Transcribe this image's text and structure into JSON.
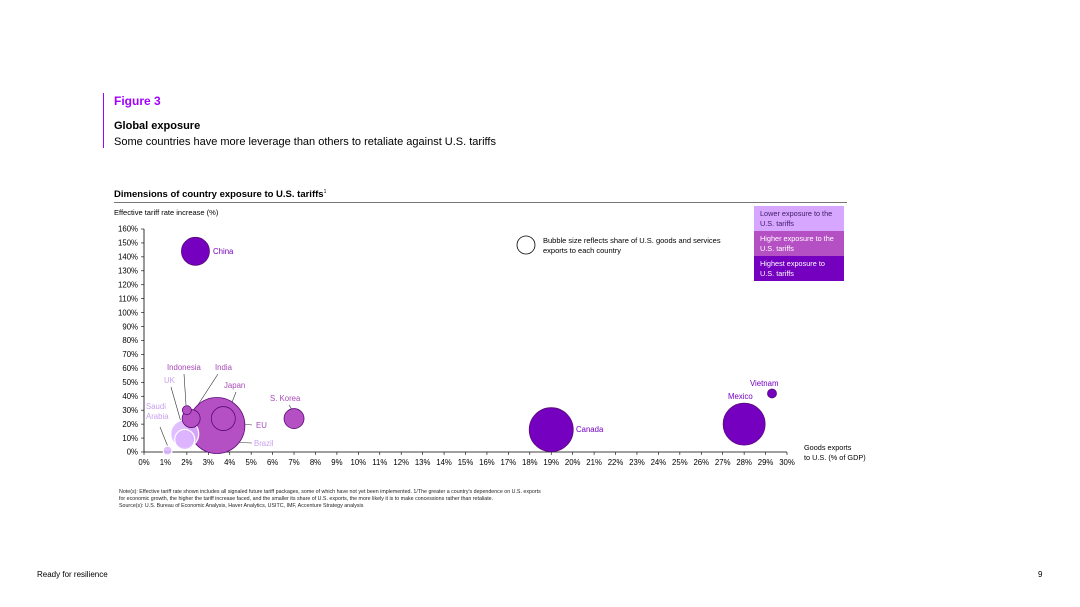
{
  "figure": {
    "label": "Figure 3",
    "title": "Global exposure",
    "subtitle": "Some countries have more leverage than others to retaliate against U.S. tariffs"
  },
  "footer": {
    "text": "Ready for resilience",
    "page": "9"
  },
  "chart_data": {
    "type": "scatter",
    "title": "Dimensions of country exposure to U.S. tariffs",
    "title_footnote": "1",
    "ylabel": "Effective tariff rate increase (%)",
    "xlabel_line1": "Goods exports",
    "xlabel_line2": "to U.S. (% of GDP)",
    "xlim": [
      0,
      30
    ],
    "ylim": [
      0,
      160
    ],
    "x_ticks": [
      0,
      1,
      2,
      3,
      4,
      5,
      6,
      7,
      8,
      9,
      10,
      11,
      12,
      13,
      14,
      15,
      16,
      17,
      18,
      19,
      20,
      21,
      22,
      23,
      24,
      25,
      26,
      27,
      28,
      29,
      30
    ],
    "y_ticks": [
      0,
      10,
      20,
      30,
      40,
      50,
      60,
      70,
      80,
      90,
      100,
      110,
      120,
      130,
      140,
      150,
      160
    ],
    "grid": false,
    "bubble_note": "Bubble size reflects share of U.S. goods and services exports to each country",
    "legend_position": "top-right",
    "legend": [
      {
        "label": "Lower exposure to the U.S. tariffs",
        "color": "#d7a6ff",
        "text_color": "#3d1a66"
      },
      {
        "label": "Higher exposure to the U.S. tariffs",
        "color": "#b54fc4",
        "text_color": "#ffffff"
      },
      {
        "label": "Highest exposure to U.S. tariffs",
        "color": "#7500c0",
        "text_color": "#ffffff"
      }
    ],
    "points": [
      {
        "name": "China",
        "x": 2.4,
        "y": 144,
        "size": 14,
        "level": "highest"
      },
      {
        "name": "Canada",
        "x": 19.0,
        "y": 16,
        "size": 22,
        "level": "highest"
      },
      {
        "name": "Mexico",
        "x": 28.0,
        "y": 20,
        "size": 21,
        "level": "highest"
      },
      {
        "name": "Vietnam",
        "x": 29.3,
        "y": 42,
        "size": 4.5,
        "level": "highest"
      },
      {
        "name": "EU",
        "x": 3.4,
        "y": 19,
        "size": 28,
        "level": "higher"
      },
      {
        "name": "Japan",
        "x": 3.7,
        "y": 24,
        "size": 12,
        "level": "higher"
      },
      {
        "name": "S. Korea",
        "x": 7.0,
        "y": 24,
        "size": 10,
        "level": "higher"
      },
      {
        "name": "India",
        "x": 2.2,
        "y": 24,
        "size": 9,
        "level": "higher"
      },
      {
        "name": "Indonesia",
        "x": 2.0,
        "y": 30,
        "size": 4.5,
        "level": "higher"
      },
      {
        "name": "UK",
        "x": 1.9,
        "y": 13,
        "size": 14,
        "level": "lower"
      },
      {
        "name": "Brazil",
        "x": 1.9,
        "y": 9,
        "size": 10,
        "level": "lower"
      },
      {
        "name": "Saudi Arabia",
        "x": 1.1,
        "y": 1,
        "size": 4.5,
        "level": "lower"
      }
    ]
  },
  "notes": {
    "line1": "Note(s): Effective tariff rate shown includes all signaled future tariff packages, some of which have not yet been implemented. 1/The greater a country's dependence on U.S. exports",
    "line2": "for economic growth, the higher the tariff increase faced, and the smaller its share of U.S. exports, the more likely it is to make concessions rather than retaliate.",
    "line3": "Source(s): U.S. Bureau of Economic Analysis, Haver Analytics, USITC, IMF, Accenture Strategy analysis"
  }
}
